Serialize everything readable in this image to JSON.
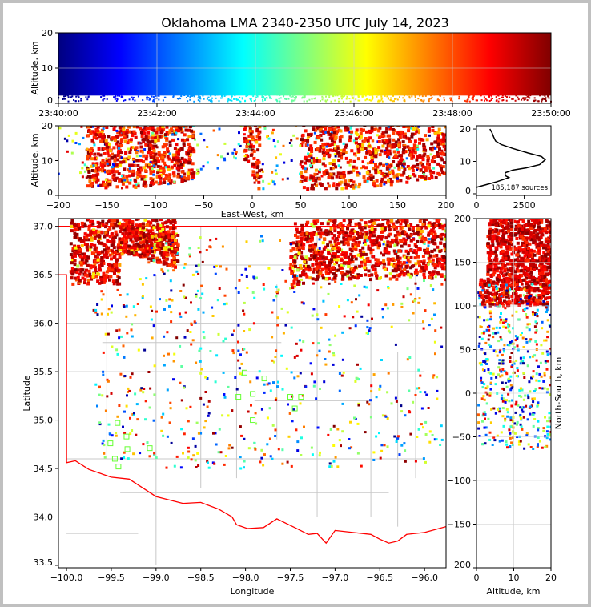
{
  "title": "Oklahoma LMA 2340-2350 UTC July 14, 2023",
  "chart_data": [
    {
      "id": "time-altitude",
      "type": "scatter",
      "xlabel": "",
      "ylabel": "Altitude, km",
      "xlim": [
        "23:40:00",
        "23:50:00"
      ],
      "ylim": [
        0,
        20
      ],
      "xticks": [
        "23:40:00",
        "23:42:00",
        "23:44:00",
        "23:46:00",
        "23:48:00",
        "23:50:00"
      ],
      "yticks": [
        0,
        10,
        20
      ],
      "color_by": "time (jet colormap)",
      "min_altitude_km": 2
    },
    {
      "id": "eastwest-altitude",
      "type": "scatter",
      "xlabel": "East-West, km",
      "ylabel": "Altitude, km",
      "xlim": [
        -200,
        200
      ],
      "ylim": [
        0,
        20
      ],
      "xticks": [
        -200,
        -150,
        -100,
        -50,
        0,
        50,
        100,
        150,
        200
      ],
      "yticks": [
        0,
        10,
        20
      ],
      "dense_regions_km": [
        [
          -170,
          -60
        ],
        [
          -8,
          8
        ],
        [
          50,
          200
        ]
      ]
    },
    {
      "id": "altitude-histogram",
      "type": "line",
      "xlabel": "",
      "ylabel": "",
      "xlim": [
        0,
        3900
      ],
      "ylim": [
        -0.5,
        21
      ],
      "xticks": [
        0,
        2500
      ],
      "yticks": [
        0,
        10,
        20
      ],
      "annotation": "185,187 sources",
      "profile": [
        [
          0,
          2
        ],
        [
          500,
          2.8
        ],
        [
          1000,
          3.6
        ],
        [
          1400,
          4.4
        ],
        [
          1700,
          5
        ],
        [
          1500,
          5.6
        ],
        [
          1500,
          6.5
        ],
        [
          1900,
          7.3
        ],
        [
          2600,
          8
        ],
        [
          3300,
          9
        ],
        [
          3600,
          10.5
        ],
        [
          3400,
          11.5
        ],
        [
          2700,
          12.6
        ],
        [
          1900,
          14
        ],
        [
          1300,
          15.2
        ],
        [
          1000,
          16.3
        ],
        [
          900,
          17.5
        ],
        [
          800,
          19
        ],
        [
          700,
          20
        ]
      ]
    },
    {
      "id": "plan-view",
      "type": "scatter",
      "xlabel": "Longitude",
      "ylabel": "Latitude",
      "xlim": [
        -100.09,
        -95.76
      ],
      "ylim": [
        33.475,
        37.08
      ],
      "xticks": [
        "-100.0",
        "-99.5",
        "-99.0",
        "-98.5",
        "-98.0",
        "-97.5",
        "-97.0",
        "-96.5",
        "-96.0"
      ],
      "yticks": [
        "33.5",
        "34.0",
        "34.5",
        "35.0",
        "35.5",
        "36.0",
        "36.5",
        "37.0"
      ],
      "stations": [
        [
          -98.08,
          35.24
        ],
        [
          -97.92,
          35.27
        ],
        [
          -97.79,
          35.43
        ],
        [
          -98.01,
          35.49
        ],
        [
          -97.92,
          35.0
        ],
        [
          -97.5,
          35.24
        ],
        [
          -97.45,
          35.12
        ],
        [
          -97.38,
          35.24
        ],
        [
          -99.43,
          34.97
        ],
        [
          -99.33,
          34.83
        ],
        [
          -99.51,
          34.76
        ],
        [
          -99.07,
          34.71
        ],
        [
          -99.32,
          34.7
        ],
        [
          -99.46,
          34.6
        ],
        [
          -99.42,
          34.52
        ]
      ],
      "station_color": "#66ff33",
      "boundary_color": "#ff0000"
    },
    {
      "id": "altitude-northsouth",
      "type": "scatter",
      "xlabel": "Altitude, km",
      "ylabel": "North-South, km",
      "xlim": [
        0,
        20
      ],
      "ylim": [
        -200,
        200
      ],
      "xticks": [
        0,
        10,
        20
      ],
      "yticks": [
        -200,
        -150,
        -100,
        -50,
        0,
        50,
        100,
        150,
        200
      ]
    }
  ]
}
